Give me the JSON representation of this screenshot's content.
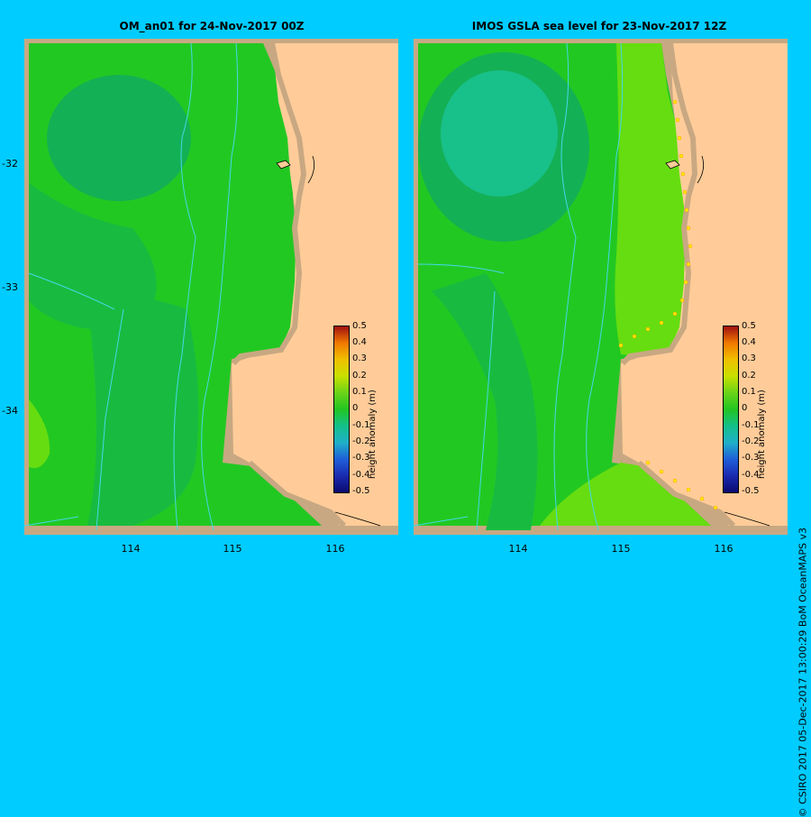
{
  "panels": [
    {
      "title": "OM_an01  for 24-Nov-2017 00Z"
    },
    {
      "title": "IMOS GSLA sea level  for 23-Nov-2017 12Z"
    }
  ],
  "axes": {
    "y_ticks": [
      "-32",
      "-33",
      "-34"
    ],
    "x_ticks": [
      "114",
      "115",
      "116"
    ]
  },
  "colorbar": {
    "label": "height anomaly (m)",
    "ticks": [
      "0.5",
      "0.4",
      "0.3",
      "0.2",
      "0.1",
      "0",
      "-0.1",
      "-0.2",
      "-0.3",
      "-0.4",
      "-0.5"
    ]
  },
  "credit": "© CSIRO 2017   05-Dec-2017 13:00:29 BoM OceanMAPS v3",
  "colors": {
    "background": "#00CCFF",
    "land": "#FFCC99",
    "shelf": "#C8A882",
    "sea_green": "#22C822",
    "sea_darker": "#14B055",
    "sea_light": "#66DD10"
  }
}
